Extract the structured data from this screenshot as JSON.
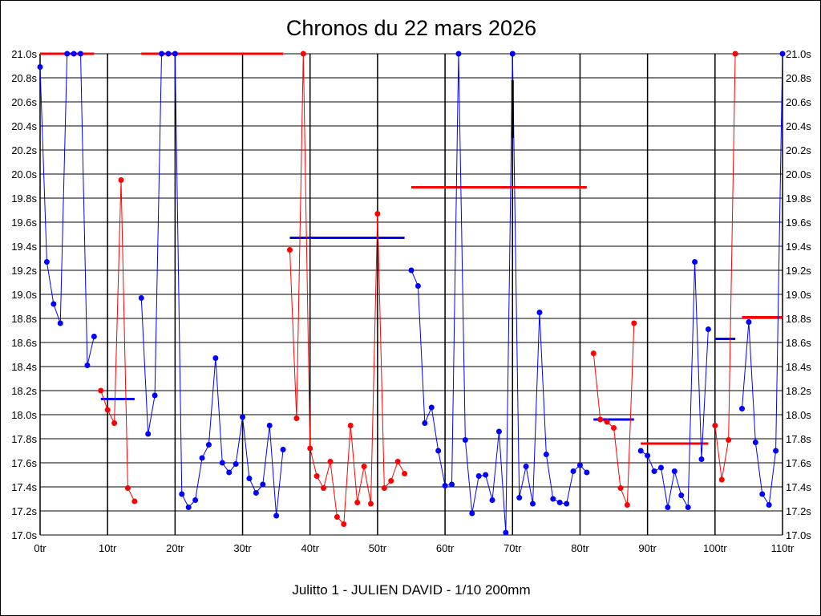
{
  "chart_data": {
    "type": "line",
    "title": "Chronos du 22 mars 2026",
    "xlabel": "Julitto 1 - JULIEN DAVID - 1/10 200mm",
    "ylabel": "",
    "xlim": [
      0,
      110
    ],
    "ylim": [
      17.0,
      21.0
    ],
    "grid": true,
    "x_ticks": [
      0,
      10,
      20,
      30,
      40,
      50,
      60,
      70,
      80,
      90,
      100,
      110
    ],
    "x_tick_labels": [
      "0tr",
      "10tr",
      "20tr",
      "30tr",
      "40tr",
      "50tr",
      "60tr",
      "70tr",
      "80tr",
      "90tr",
      "100tr",
      "110tr"
    ],
    "y_ticks": [
      17.0,
      17.2,
      17.4,
      17.6,
      17.8,
      18.0,
      18.2,
      18.4,
      18.6,
      18.8,
      19.0,
      19.2,
      19.4,
      19.6,
      19.8,
      20.0,
      20.2,
      20.4,
      20.6,
      20.8,
      21.0
    ],
    "y_tick_labels": [
      "17.0s",
      "17.2s",
      "17.4s",
      "17.6s",
      "17.8s",
      "18.0s",
      "18.2s",
      "18.4s",
      "18.6s",
      "18.8s",
      "19.0s",
      "19.2s",
      "19.4s",
      "19.6s",
      "19.8s",
      "20.0s",
      "20.2s",
      "20.4s",
      "20.6s",
      "20.8s",
      "21.0s"
    ],
    "colors": {
      "blue": "#0000ff",
      "red": "#ff0000",
      "grid": "#000000"
    },
    "series": [
      {
        "name": "segment-1",
        "color": "blue",
        "start_lap": 0,
        "values": [
          20.89,
          19.27,
          18.92,
          18.76,
          21.0,
          21.0,
          21.0,
          18.41,
          18.65
        ],
        "average": 21.0
      },
      {
        "name": "segment-2",
        "color": "red",
        "start_lap": 9,
        "values": [
          18.2,
          18.04,
          17.93,
          19.95,
          17.39,
          17.28
        ],
        "average": 18.13
      },
      {
        "name": "segment-3",
        "color": "blue",
        "start_lap": 15,
        "values": [
          18.97,
          17.84,
          18.16,
          21.0,
          21.0,
          21.0,
          17.34,
          17.23,
          17.29,
          17.64,
          17.75,
          18.47,
          17.6,
          17.52,
          17.59,
          17.98,
          17.47,
          17.35,
          17.42,
          17.91,
          17.16,
          17.71
        ],
        "average": 21.0
      },
      {
        "name": "segment-4",
        "color": "red",
        "start_lap": 37,
        "values": [
          19.37,
          17.97,
          21.0,
          17.72,
          17.49,
          17.39,
          17.61,
          17.15,
          17.09,
          17.91,
          17.27,
          17.57,
          17.26,
          19.67,
          17.39,
          17.45,
          17.61,
          17.51
        ],
        "average": 19.47
      },
      {
        "name": "segment-5",
        "color": "blue",
        "start_lap": 55,
        "values": [
          19.2,
          19.07,
          17.93,
          18.06,
          17.7,
          17.41,
          17.42,
          21.0,
          17.79,
          17.18,
          17.49,
          17.5,
          17.29,
          17.86,
          17.02,
          21.0,
          17.31,
          17.57,
          17.26,
          18.85,
          17.67,
          17.3,
          17.27,
          17.26,
          17.53,
          17.58,
          17.52
        ],
        "average": 19.89
      },
      {
        "name": "segment-6",
        "color": "red",
        "start_lap": 82,
        "values": [
          18.51,
          17.96,
          17.94,
          17.89,
          17.39,
          17.25,
          18.76
        ],
        "average": 17.96
      },
      {
        "name": "segment-7",
        "color": "blue",
        "start_lap": 89,
        "values": [
          17.7,
          17.66,
          17.53,
          17.56,
          17.23,
          17.53,
          17.33,
          17.23,
          19.27,
          17.63,
          18.71
        ],
        "average": 17.76
      },
      {
        "name": "segment-8",
        "color": "red",
        "start_lap": 100,
        "values": [
          17.91,
          17.46,
          17.79,
          21.0
        ],
        "average": 18.63
      },
      {
        "name": "segment-9",
        "color": "blue",
        "start_lap": 104,
        "values": [
          18.05,
          18.77,
          17.77,
          17.34,
          17.25,
          17.7,
          21.0
        ],
        "average": 18.81
      }
    ],
    "markers": [
      {
        "lap": 70,
        "from": 20.3,
        "to": 20.78,
        "color": "#000000"
      }
    ]
  }
}
